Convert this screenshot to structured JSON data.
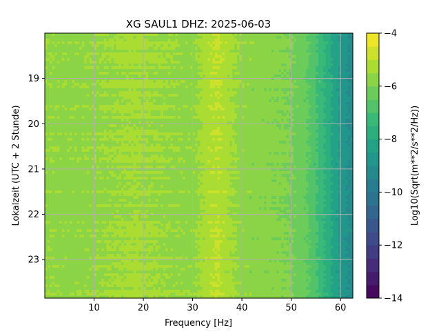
{
  "chart_data": {
    "type": "heatmap",
    "title": "XG SAUL1  DHZ: 2025-06-03",
    "xlabel": "Frequency [Hz]",
    "ylabel": "Lokalzeit (UTC + 2 Stunde)",
    "xlim": [
      0.0,
      62.5
    ],
    "ylim": [
      18.0,
      23.85
    ],
    "y_inverted": true,
    "x_ticks": [
      10,
      20,
      30,
      40,
      50,
      60
    ],
    "x_tick_labels": [
      "10",
      "20",
      "30",
      "40",
      "50",
      "60"
    ],
    "y_ticks": [
      19,
      20,
      21,
      22,
      23
    ],
    "y_tick_labels": [
      "19",
      "20",
      "21",
      "22",
      "23"
    ],
    "grid": true,
    "colormap": "viridis",
    "colorbar": {
      "label": "Log10(Sqrt(m**2/s**2/Hz))",
      "range": [
        -14,
        -4
      ],
      "levels": 20,
      "ticks": [
        -4,
        -6,
        -8,
        -10,
        -12,
        -14
      ],
      "tick_labels": [
        "−4",
        "−6",
        "−8",
        "−10",
        "−12",
        "−14"
      ]
    },
    "frequency_profile": {
      "frequency_hz": [
        0,
        5,
        10,
        15,
        18,
        22,
        26,
        30,
        33,
        35,
        37,
        40,
        45,
        50,
        53,
        55,
        57,
        59,
        61,
        62.5
      ],
      "value": [
        -5.6,
        -5.7,
        -5.6,
        -5.5,
        -5.4,
        -5.5,
        -5.6,
        -5.7,
        -5.2,
        -5.0,
        -5.3,
        -5.7,
        -5.8,
        -6.0,
        -6.4,
        -6.9,
        -7.6,
        -8.3,
        -8.9,
        -9.2
      ]
    }
  }
}
